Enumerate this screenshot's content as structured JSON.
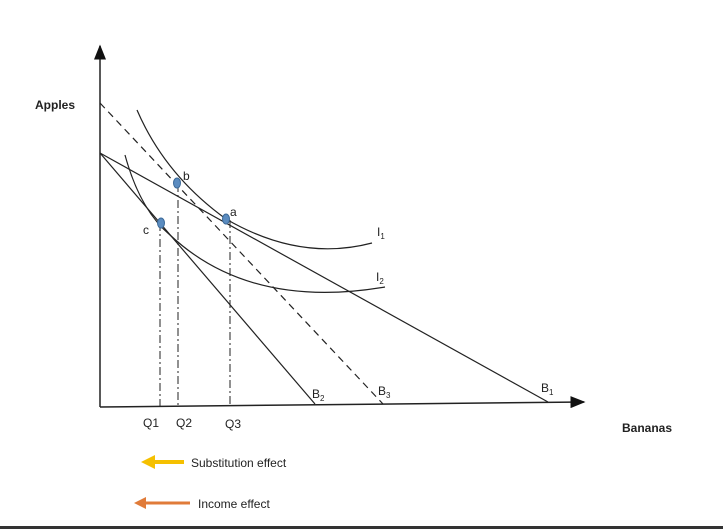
{
  "axes": {
    "y_label": "Apples",
    "x_label": "Bananas"
  },
  "points": [
    {
      "id": "b",
      "label": "b"
    },
    {
      "id": "a",
      "label": "a"
    },
    {
      "id": "c",
      "label": "c"
    }
  ],
  "budget_lines": {
    "b1": "B",
    "b1_sub": "1",
    "b2": "B",
    "b2_sub": "2",
    "b3": "B",
    "b3_sub": "3"
  },
  "indifference_curves": {
    "i1": "I",
    "i1_sub": "1",
    "i2": "I",
    "i2_sub": "2"
  },
  "quantities": {
    "q1": "Q1",
    "q2": "Q2",
    "q3": "Q3"
  },
  "legend": {
    "substitution": {
      "label": "Substitution effect",
      "color": "#f5c000"
    },
    "income": {
      "label": "Income effect",
      "color": "#e07b39"
    }
  },
  "colors": {
    "point_fill": "#5b8cc0",
    "line": "#222222"
  }
}
